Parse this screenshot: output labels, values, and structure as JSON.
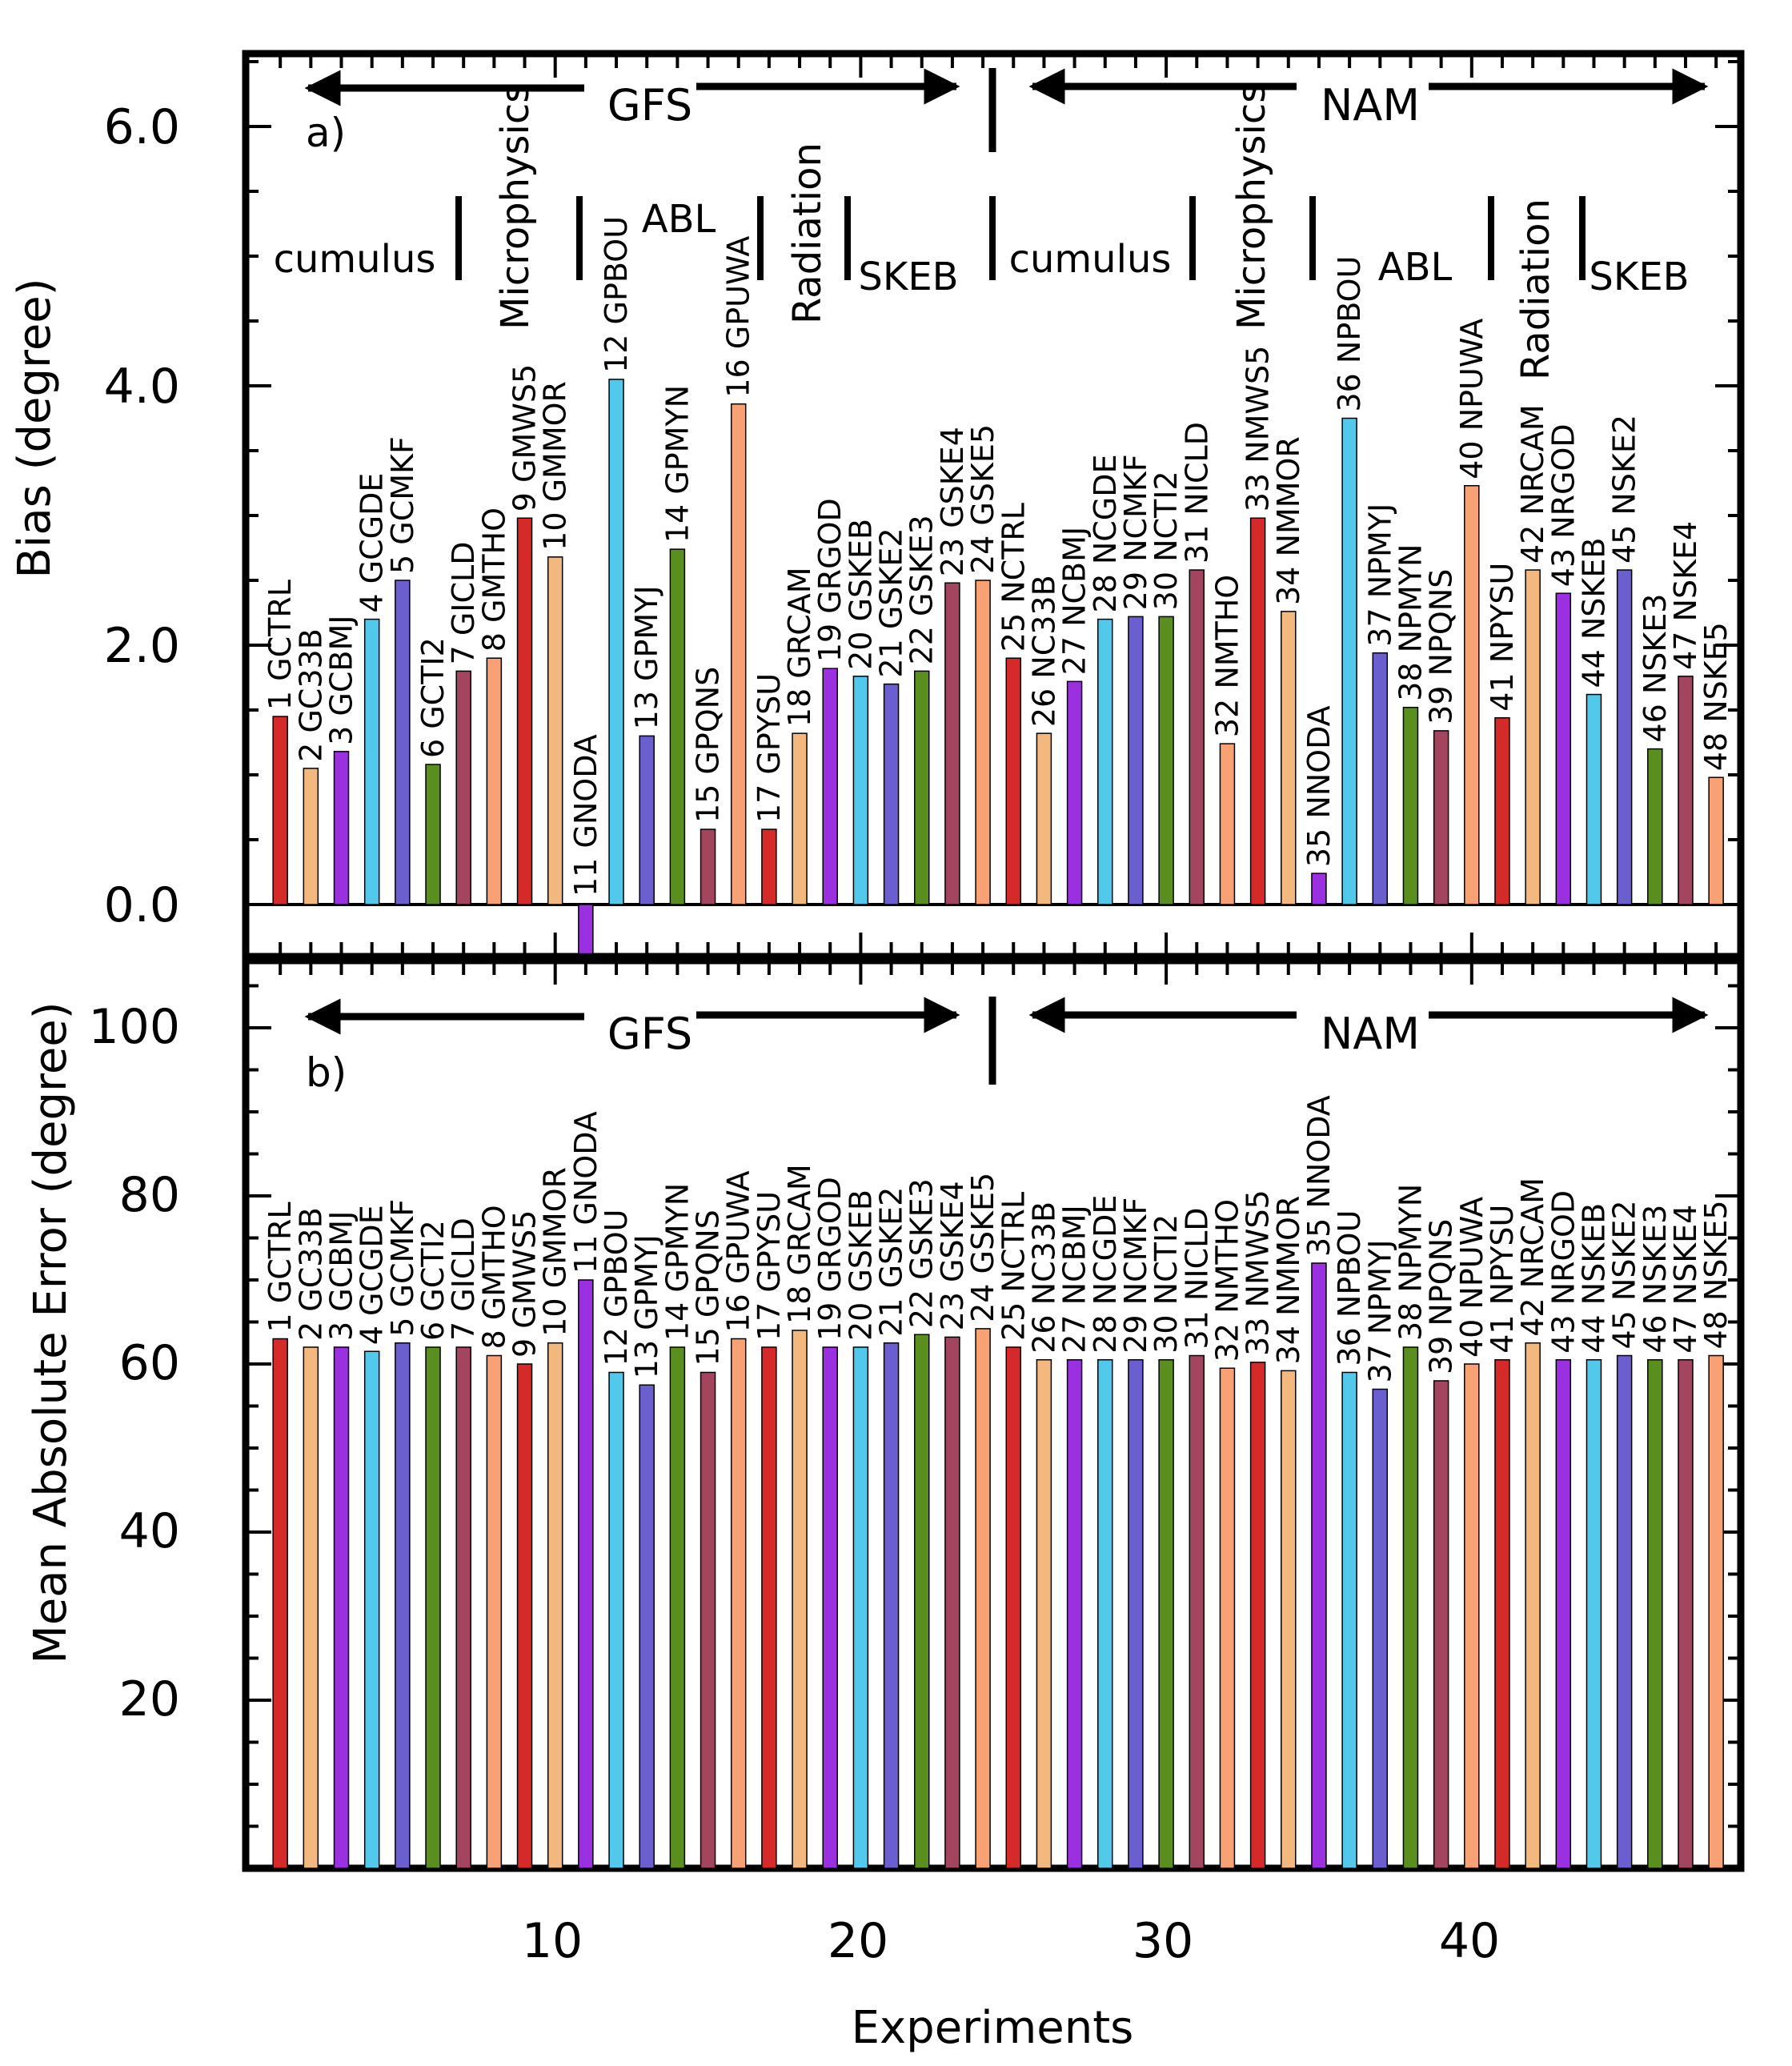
{
  "colors": {
    "red": "#d42a2a",
    "tan": "#f2b87e",
    "purple": "#9b30e0",
    "cyan": "#52c8ea",
    "slate": "#6b5fd0",
    "green": "#5a8f1f",
    "maroon": "#a3455f",
    "salmon": "#f8a174"
  },
  "chart_data": [
    {
      "type": "bar",
      "panel_label": "a)",
      "ylabel": "Bias (degree)",
      "ylim": [
        -0.4,
        6.6
      ],
      "yticks": [
        "0.0",
        "2.0",
        "4.0",
        "6.0"
      ],
      "xlim": [
        0,
        49
      ],
      "groups": [
        {
          "name": "GFS",
          "from": 1,
          "to": 24
        },
        {
          "name": "NAM",
          "from": 25,
          "to": 48
        }
      ],
      "sections": [
        "cumulus",
        "Microphysics",
        "ABL",
        "Radiation",
        "SKEB",
        "cumulus",
        "Microphysics",
        "ABL",
        "Radiation",
        "SKEB"
      ],
      "labels": [
        "1 GCTRL",
        "2 GC33B",
        "3 GCBMJ",
        "4 GCGDE",
        "5 GCMKF",
        "6 GCTI2",
        "7 GICLD",
        "8 GMTHO",
        "9 GMWS5",
        "10 GMMOR",
        "11 GNODA",
        "12 GPBOU",
        "13 GPMYJ",
        "14 GPMYN",
        "15 GPQNS",
        "16 GPUWA",
        "17 GPYSU",
        "18 GRCAM",
        "19 GRGOD",
        "20 GSKEB",
        "21 GSKE2",
        "22 GSKE3",
        "23 GSKE4",
        "24 GSKE5",
        "25 NCTRL",
        "26 NC33B",
        "27 NCBMJ",
        "28 NCGDE",
        "29 NCMKF",
        "30 NCTI2",
        "31 NICLD",
        "32 NMTHO",
        "33 NMWS5",
        "34 NMMOR",
        "35 NNODA",
        "36 NPBOU",
        "37 NPMYJ",
        "38 NPMYN",
        "39 NPQNS",
        "40 NPUWA",
        "41 NPYSU",
        "42 NRCAM",
        "43 NRGOD",
        "44 NSKEB",
        "45 NSKE2",
        "46 NSKE3",
        "47 NSKE4",
        "48 NSKE5"
      ],
      "values": [
        1.45,
        1.05,
        1.18,
        2.2,
        2.5,
        1.08,
        1.8,
        1.9,
        2.98,
        2.68,
        -0.38,
        4.05,
        1.3,
        2.74,
        0.58,
        3.86,
        0.58,
        1.32,
        1.82,
        1.76,
        1.7,
        1.8,
        2.48,
        2.5,
        1.9,
        1.32,
        1.72,
        2.2,
        2.22,
        2.22,
        2.58,
        1.24,
        2.98,
        2.26,
        0.24,
        3.75,
        1.94,
        1.52,
        1.34,
        3.23,
        1.44,
        2.58,
        2.4,
        1.62,
        2.58,
        1.2,
        1.76,
        0.98
      ]
    },
    {
      "type": "bar",
      "panel_label": "b)",
      "ylabel": "Mean Absolute Error (degree)",
      "xlabel": "Experiments",
      "ylim": [
        0,
        107
      ],
      "yticks": [
        "20",
        "40",
        "60",
        "80",
        "100"
      ],
      "xticks": [
        "10",
        "20",
        "30",
        "40"
      ],
      "xlim": [
        0,
        49
      ],
      "groups": [
        {
          "name": "GFS",
          "from": 1,
          "to": 24
        },
        {
          "name": "NAM",
          "from": 25,
          "to": 48
        }
      ],
      "labels": [
        "1 GCTRL",
        "2 GC33B",
        "3 GCBMJ",
        "4 GCGDE",
        "5 GCMKF",
        "6 GCTI2",
        "7 GICLD",
        "8 GMTHO",
        "9 GMWS5",
        "10 GMMOR",
        "11 GNODA",
        "12 GPBOU",
        "13 GPMYJ",
        "14 GPMYN",
        "15 GPQNS",
        "16 GPUWA",
        "17 GPYSU",
        "18 GRCAM",
        "19 GRGOD",
        "20 GSKEB",
        "21 GSKE2",
        "22 GSKE3",
        "23 GSKE4",
        "24 GSKE5",
        "25 NCTRL",
        "26 NC33B",
        "27 NCBMJ",
        "28 NCGDE",
        "29 NCMKF",
        "30 NCTI2",
        "31 NICLD",
        "32 NMTHO",
        "33 NMWS5",
        "34 NMMOR",
        "35 NNODA",
        "36 NPBOU",
        "37 NPMYJ",
        "38 NPMYN",
        "39 NPQNS",
        "40 NPUWA",
        "41 NPYSU",
        "42 NRCAM",
        "43 NRGOD",
        "44 NSKEB",
        "45 NSKE2",
        "46 NSKE3",
        "47 NSKE4",
        "48 NSKE5"
      ],
      "values": [
        63,
        62,
        62,
        61.5,
        62.5,
        62,
        62,
        61,
        60,
        62.5,
        70,
        59,
        57.5,
        62,
        59,
        63,
        62,
        64,
        62,
        62,
        62.5,
        63.5,
        63.2,
        64.2,
        62,
        60.5,
        60.5,
        60.5,
        60.5,
        60.5,
        61,
        59.5,
        60.2,
        59.2,
        72,
        59,
        57,
        62,
        58,
        60,
        60.5,
        62.5,
        60.5,
        60.5,
        61,
        60.5,
        60.5,
        61
      ]
    }
  ]
}
